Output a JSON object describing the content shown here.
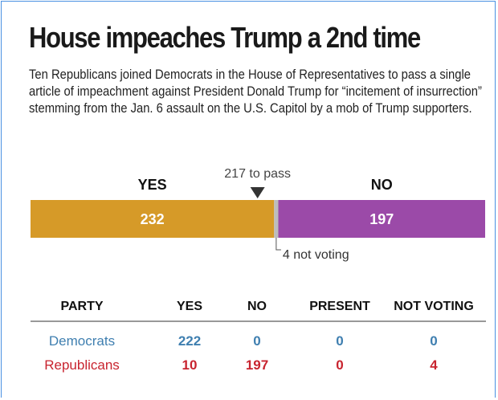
{
  "headline": "House impeaches Trump a 2nd time",
  "description": "Ten Republicans joined Democrats in the House of Representatives to pass a single article of impeachment against President Donald Trump for “incitement of insurrection” stemming from the Jan. 6 assault on the U.S. Capitol by a mob of Trump supporters.",
  "colors": {
    "yes_bar": "#d69a28",
    "no_bar": "#9b4aa8",
    "not_voting_bar": "#bdbdbd",
    "democrats": "#3f7fb0",
    "republicans": "#c8242f",
    "frame_border": "#4a90e2"
  },
  "chart_data": {
    "type": "bar",
    "orientation": "horizontal-stacked",
    "total": 433,
    "threshold": {
      "label": "217 to pass",
      "value": 217
    },
    "segments": [
      {
        "name": "YES",
        "value": 232,
        "label": "232"
      },
      {
        "name": "not voting",
        "value": 4,
        "label": "4 not voting"
      },
      {
        "name": "NO",
        "value": 197,
        "label": "197"
      }
    ],
    "table": {
      "columns": [
        "PARTY",
        "YES",
        "NO",
        "PRESENT",
        "NOT VOTING"
      ],
      "rows": [
        {
          "party": "Democrats",
          "values": [
            "222",
            "0",
            "0",
            "0"
          ]
        },
        {
          "party": "Republicans",
          "values": [
            "10",
            "197",
            "0",
            "4"
          ]
        }
      ]
    }
  }
}
